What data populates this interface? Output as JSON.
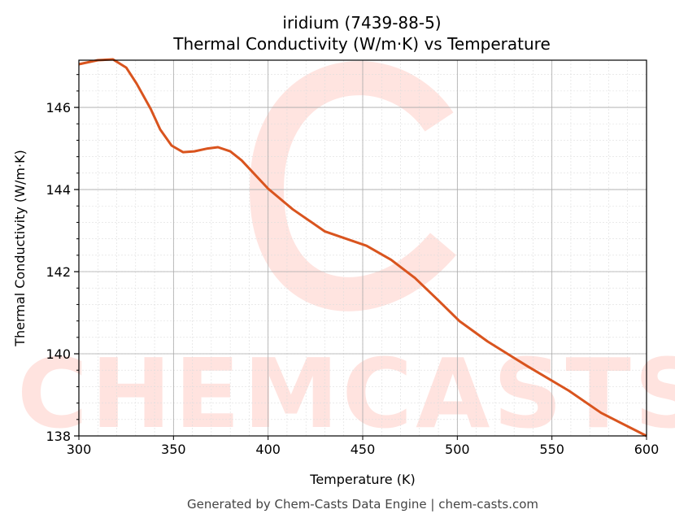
{
  "chart_data": {
    "type": "line",
    "title": "iridium (7439-88-5)",
    "subtitle": "Thermal Conductivity (W/m·K) vs Temperature",
    "xlabel": "Temperature (K)",
    "ylabel": "Thermal Conductivity (W/m·K)",
    "xlim": [
      300,
      600
    ],
    "ylim": [
      138,
      147.15
    ],
    "xticks": [
      300,
      350,
      400,
      450,
      500,
      550,
      600
    ],
    "yticks": [
      138,
      140,
      142,
      144,
      146
    ],
    "grid": true,
    "line_color": "#d9541e",
    "series": [
      {
        "x": [
          300,
          310,
          318,
          325,
          330.5,
          338,
          343,
          349,
          355,
          361,
          368,
          373.5,
          380,
          386,
          400,
          413,
          430,
          452,
          465,
          477.5,
          490,
          501,
          516,
          537,
          559,
          576,
          600
        ],
        "y": [
          147.05,
          147.15,
          147.17,
          146.97,
          146.58,
          145.96,
          145.46,
          145.07,
          144.91,
          144.93,
          145.0,
          145.03,
          144.93,
          144.71,
          144.02,
          143.52,
          142.98,
          142.63,
          142.29,
          141.85,
          141.3,
          140.8,
          140.3,
          139.7,
          139.1,
          138.56,
          138.0
        ]
      }
    ]
  },
  "watermark": "CHEMCASTS",
  "footer": "Generated by Chem-Casts Data Engine | chem-casts.com"
}
